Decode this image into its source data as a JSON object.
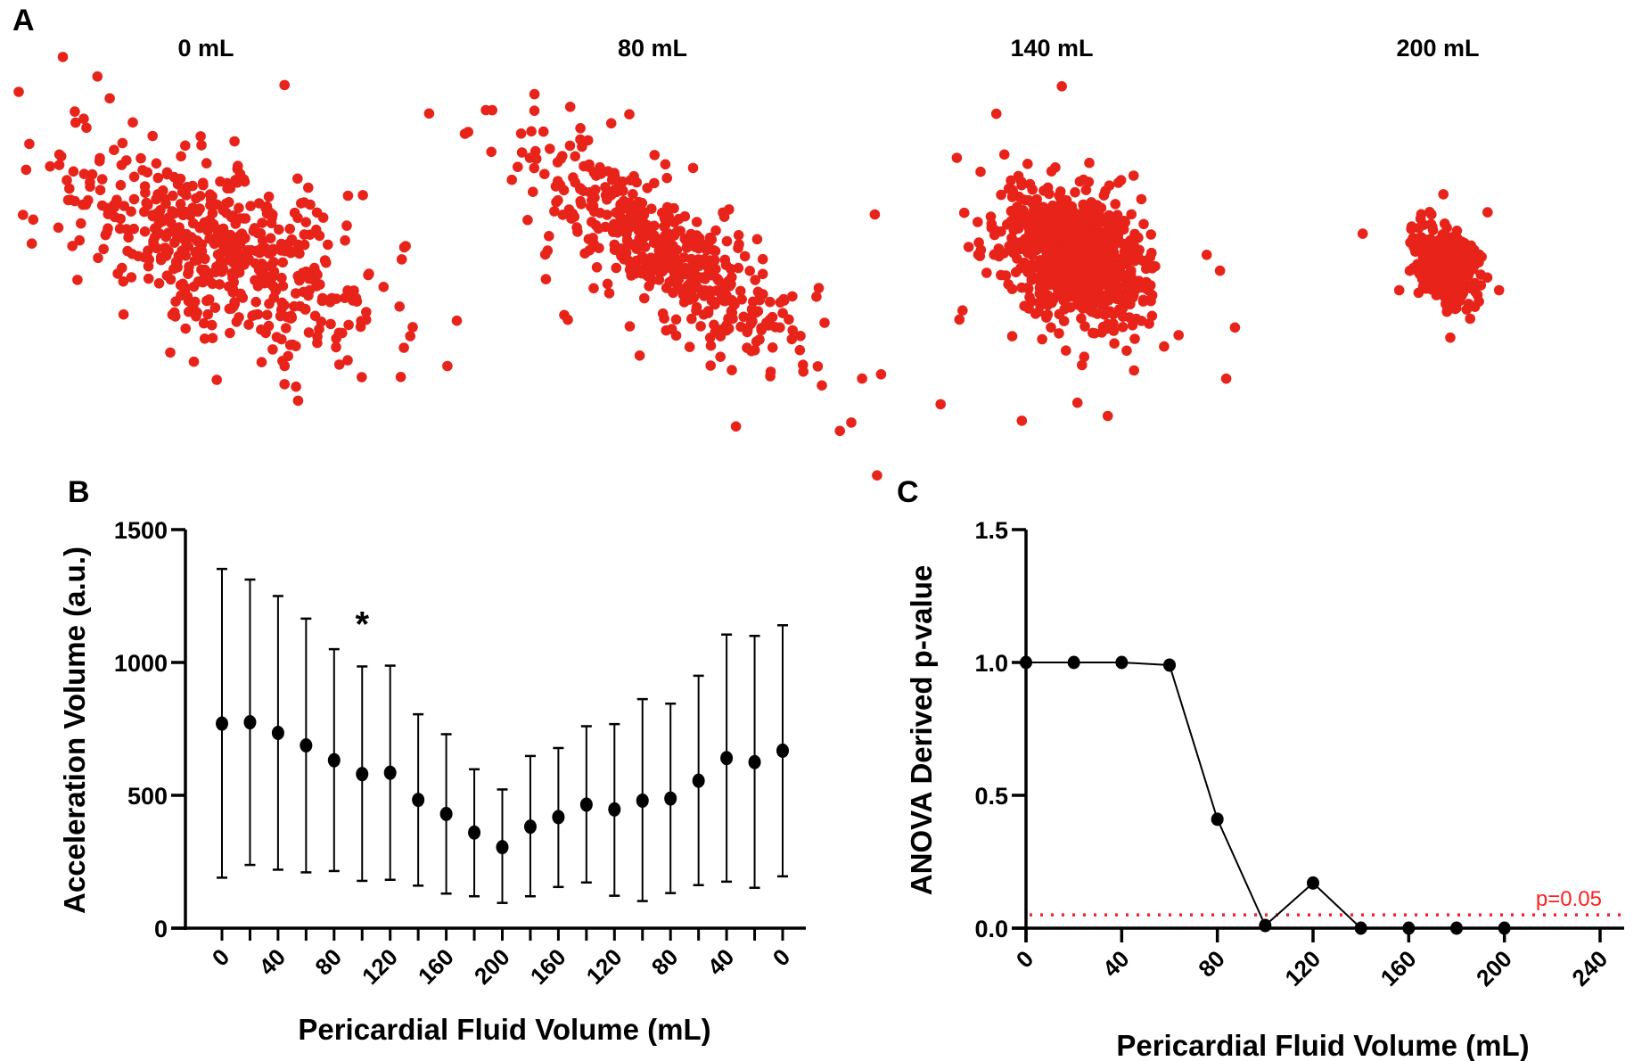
{
  "panel_labels": {
    "a": "A",
    "b": "B",
    "c": "C"
  },
  "chart_data": [
    {
      "type": "scatter",
      "panel": "A",
      "description_units": "arbitrary",
      "color": "#e8231a",
      "axis_range": [
        -250,
        250
      ],
      "subplots": [
        {
          "title": "0 mL",
          "n": 520,
          "sd_major": 95,
          "sd_minor": 42,
          "angle_deg": -28,
          "seed": 11
        },
        {
          "title": "80 mL",
          "n": 480,
          "sd_major": 90,
          "sd_minor": 30,
          "angle_deg": -38,
          "seed": 23
        },
        {
          "title": "140 mL",
          "n": 900,
          "sd_major": 42,
          "sd_minor": 30,
          "angle_deg": -45,
          "seed": 37
        },
        {
          "title": "200 mL",
          "n": 420,
          "sd_major": 22,
          "sd_minor": 15,
          "angle_deg": -60,
          "seed": 51
        }
      ]
    },
    {
      "type": "scatter-errorbar",
      "panel": "B",
      "xlabel": "Pericardial Fluid Volume (mL)",
      "ylabel": "Acceleration Volume (a.u.)",
      "ylim": [
        0,
        1500
      ],
      "yticks": [
        "0",
        "500",
        "1000",
        "1500"
      ],
      "categories": [
        0,
        20,
        40,
        60,
        80,
        100,
        120,
        140,
        160,
        180,
        200,
        180,
        160,
        140,
        120,
        100,
        80,
        60,
        40,
        20,
        0
      ],
      "xtick_labels": [
        "0",
        "40",
        "80",
        "120",
        "160",
        "200",
        "160",
        "120",
        "80",
        "40",
        "0"
      ],
      "mean": [
        770,
        775,
        735,
        688,
        632,
        580,
        585,
        483,
        430,
        360,
        305,
        382,
        418,
        465,
        447,
        480,
        488,
        555,
        640,
        625,
        668
      ],
      "upper": [
        1352,
        1312,
        1250,
        1165,
        1050,
        985,
        988,
        805,
        730,
        598,
        522,
        648,
        678,
        760,
        768,
        862,
        845,
        950,
        1105,
        1100,
        1140
      ],
      "lower": [
        190,
        238,
        220,
        210,
        215,
        178,
        182,
        160,
        130,
        120,
        95,
        120,
        155,
        172,
        122,
        102,
        132,
        162,
        175,
        152,
        195
      ],
      "annotation": {
        "text": "*",
        "index": 5,
        "value": 1200
      }
    },
    {
      "type": "line",
      "panel": "C",
      "xlabel": "Pericardial Fluid Volume (mL)",
      "ylabel": "ANOVA Derived p-value",
      "xlim": [
        0,
        240
      ],
      "ylim": [
        0,
        1.5
      ],
      "xticks": [
        "0",
        "40",
        "80",
        "120",
        "160",
        "200",
        "240"
      ],
      "yticks": [
        "0.0",
        "0.5",
        "1.0",
        "1.5"
      ],
      "x": [
        0,
        20,
        40,
        60,
        80,
        100,
        120,
        140,
        160,
        180,
        200
      ],
      "y": [
        1.0,
        1.0,
        1.0,
        0.99,
        0.41,
        0.01,
        0.17,
        0.0,
        0.0,
        0.0,
        0.0
      ],
      "threshold": {
        "value": 0.05,
        "label": "p=0.05",
        "color": "#ff2020"
      }
    }
  ]
}
